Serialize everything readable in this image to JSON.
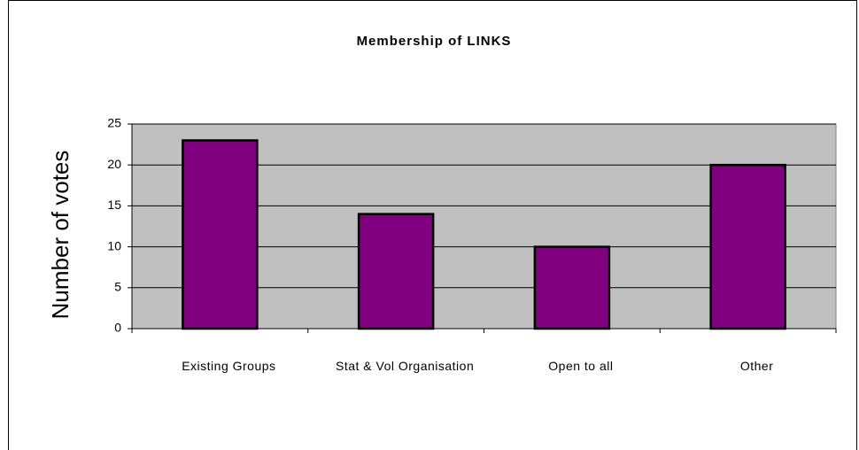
{
  "chart_data": {
    "type": "bar",
    "title": "Membership of LINKS",
    "y_label": "Number of votes",
    "categories": [
      "Existing Groups",
      "Stat & Vol Organisation",
      "Open to all",
      "Other"
    ],
    "values": [
      23,
      14,
      10,
      20
    ],
    "color": "#800080",
    "ylim": [
      0,
      25
    ],
    "yticks": [
      0,
      5,
      10,
      15,
      20,
      25
    ],
    "grid": true
  }
}
